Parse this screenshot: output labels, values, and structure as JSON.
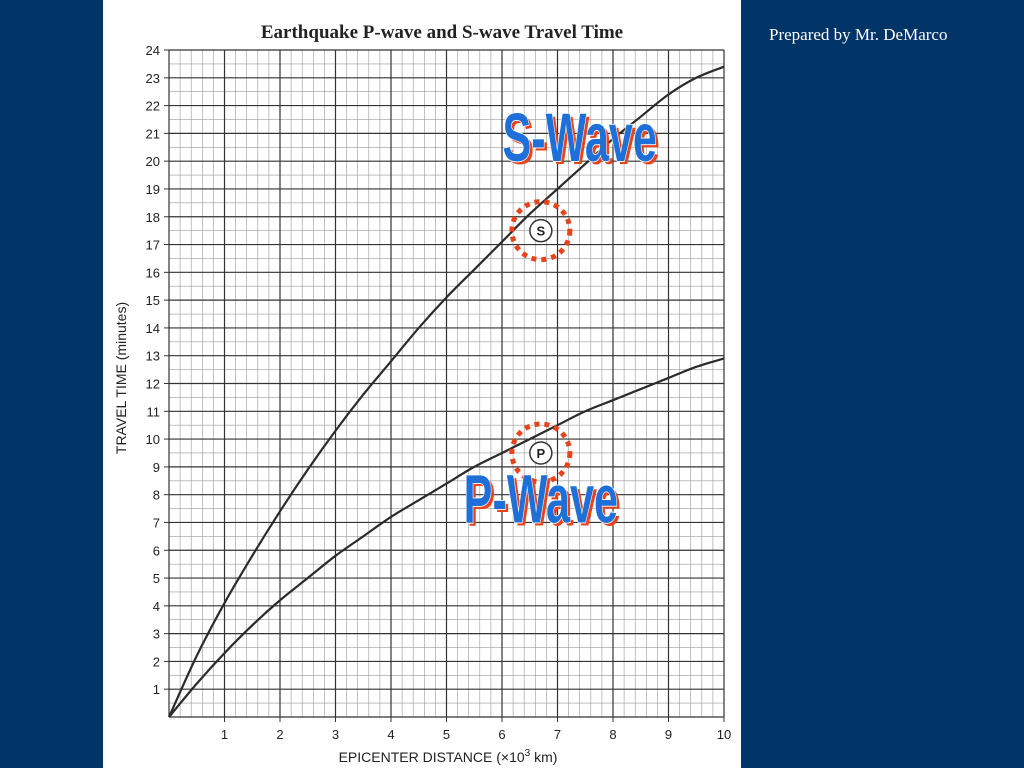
{
  "slide": {
    "credit": "Prepared by Mr. DeMarco",
    "background": "#003366"
  },
  "chart_data": {
    "type": "line",
    "title": "Earthquake P-wave and S-wave Travel Time",
    "xlabel_main": "EPICENTER DISTANCE (×10",
    "xlabel_sup": "3",
    "xlabel_end": " km)",
    "ylabel": "TRAVEL TIME (minutes)",
    "xlim": [
      0,
      10
    ],
    "ylim": [
      0,
      24
    ],
    "x_ticks": [
      "1",
      "2",
      "3",
      "4",
      "5",
      "6",
      "7",
      "8",
      "9",
      "10"
    ],
    "y_ticks": [
      "1",
      "2",
      "3",
      "4",
      "5",
      "6",
      "7",
      "8",
      "9",
      "10",
      "11",
      "12",
      "13",
      "14",
      "15",
      "16",
      "17",
      "18",
      "19",
      "20",
      "21",
      "22",
      "23",
      "24"
    ],
    "grid": true,
    "series": [
      {
        "name": "S",
        "x": [
          0,
          0.5,
          1,
          1.5,
          2,
          2.5,
          3,
          3.5,
          4,
          4.5,
          5,
          5.5,
          6,
          6.5,
          7,
          7.5,
          8,
          8.5,
          9,
          9.5,
          10
        ],
        "values": [
          0,
          2.2,
          4.1,
          5.8,
          7.4,
          8.9,
          10.3,
          11.6,
          12.8,
          14.0,
          15.1,
          16.1,
          17.1,
          18.1,
          19.0,
          19.9,
          20.8,
          21.6,
          22.4,
          23.0,
          23.4
        ]
      },
      {
        "name": "P",
        "x": [
          0,
          0.5,
          1,
          1.5,
          2,
          2.5,
          3,
          3.5,
          4,
          4.5,
          5,
          5.5,
          6,
          6.5,
          7,
          7.5,
          8,
          8.5,
          9,
          9.5,
          10
        ],
        "values": [
          0,
          1.2,
          2.3,
          3.3,
          4.2,
          5.0,
          5.8,
          6.5,
          7.2,
          7.8,
          8.4,
          9.0,
          9.5,
          10.0,
          10.5,
          11.0,
          11.4,
          11.8,
          12.2,
          12.6,
          12.9
        ]
      }
    ],
    "curve_labels": [
      {
        "text": "S",
        "x": 6.7,
        "y": 17.5
      },
      {
        "text": "P",
        "x": 6.7,
        "y": 9.5
      }
    ],
    "callouts": [
      {
        "text": "S-Wave",
        "x": 7.4,
        "y": 20.0,
        "color": "#1f6fd8",
        "highlight": "#e8431b"
      },
      {
        "text": "P-Wave",
        "x": 6.7,
        "y": 7.0,
        "color": "#1f6fd8",
        "highlight": "#e8431b"
      }
    ]
  }
}
